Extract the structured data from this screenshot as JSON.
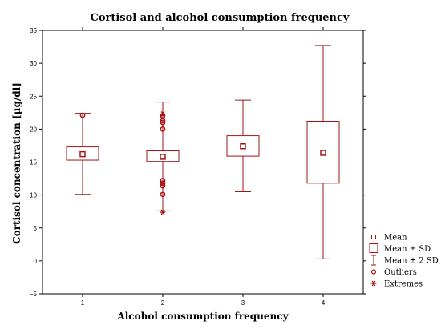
{
  "chart_data": {
    "type": "box",
    "title": "Cortisol and alcohol consumption frequency",
    "xlabel": "Alcohol consumption frequency",
    "ylabel": "Cortisol concentration [µg/dl]",
    "categories": [
      "1",
      "2",
      "3",
      "4"
    ],
    "ylim": [
      -5,
      35
    ],
    "yticks": [
      -5,
      0,
      5,
      10,
      15,
      20,
      25,
      30,
      35
    ],
    "color": "#a31515",
    "groups": [
      {
        "category": "1",
        "mean": 16.2,
        "sd_low": 15.3,
        "sd_high": 17.3,
        "sd2_low": 10.1,
        "sd2_high": 22.4,
        "outliers": [
          22.1
        ],
        "extremes": []
      },
      {
        "category": "2",
        "mean": 15.8,
        "sd_low": 15.1,
        "sd_high": 16.7,
        "sd2_low": 7.6,
        "sd2_high": 24.1,
        "outliers": [
          22.0,
          21.3,
          21.0,
          20.0,
          12.2,
          11.8,
          11.4,
          10.1
        ],
        "extremes": [
          22.3,
          7.4
        ]
      },
      {
        "category": "3",
        "mean": 17.4,
        "sd_low": 15.9,
        "sd_high": 19.0,
        "sd2_low": 10.5,
        "sd2_high": 24.4,
        "outliers": [],
        "extremes": []
      },
      {
        "category": "4",
        "mean": 16.4,
        "sd_low": 11.8,
        "sd_high": 21.2,
        "sd2_low": 0.3,
        "sd2_high": 32.7,
        "outliers": [],
        "extremes": []
      }
    ],
    "legend": {
      "position": "bottom-right",
      "items": [
        {
          "label": "Mean",
          "symbol": "small-square"
        },
        {
          "label": "Mean ± SD",
          "symbol": "box"
        },
        {
          "label": "Mean ± 2 SD",
          "symbol": "whisker"
        },
        {
          "label": "Outliers",
          "symbol": "circle"
        },
        {
          "label": "Extremes",
          "symbol": "asterisk"
        }
      ]
    }
  }
}
